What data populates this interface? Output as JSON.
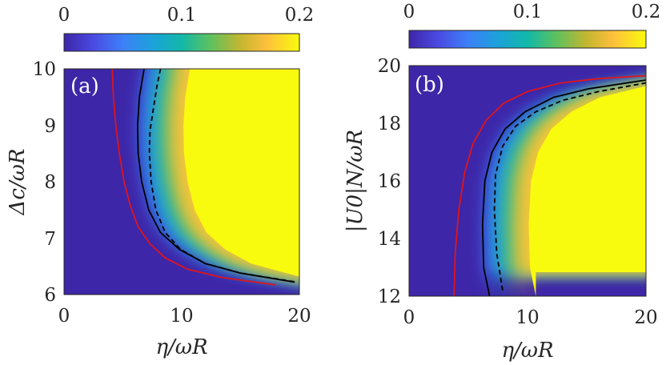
{
  "figure": {
    "colormap": "parula",
    "colors": {
      "background_low": "#3d26a8",
      "high": "#f9fb0e",
      "boundary_red": "#e0151b",
      "boundary_black": "#000000"
    }
  },
  "chart_data": [
    {
      "type": "heatmap",
      "panel_label": "(a)",
      "xlabel": "η/ωR",
      "ylabel": "Δc/ωR",
      "xlim": [
        0,
        20
      ],
      "ylim": [
        6,
        10
      ],
      "x_ticks": [
        "0",
        "10",
        "20"
      ],
      "y_ticks": [
        "6",
        "7",
        "8",
        "9",
        "10"
      ],
      "colorbar": {
        "range": [
          0,
          0.2
        ],
        "ticks": [
          "0",
          "0.1",
          "0.2"
        ]
      },
      "note": "Region right of the boundary saturates at 0.2 (yellow); left is 0 (dark blue).",
      "curves": [
        {
          "name": "red boundary",
          "style": "solid",
          "color": "#e0151b",
          "x": [
            4.1,
            4.2,
            4.4,
            4.7,
            5.1,
            5.6,
            6.3,
            7.3,
            8.6,
            10.5,
            13.5,
            18.0
          ],
          "y": [
            10.0,
            9.5,
            9.0,
            8.5,
            8.0,
            7.6,
            7.2,
            6.9,
            6.65,
            6.45,
            6.3,
            6.17
          ]
        },
        {
          "name": "black solid boundary",
          "style": "solid",
          "color": "#000000",
          "x": [
            6.8,
            6.4,
            6.25,
            6.3,
            6.6,
            7.2,
            8.2,
            9.8,
            12.0,
            15.0,
            19.6
          ],
          "y": [
            10.0,
            9.5,
            9.0,
            8.5,
            8.0,
            7.5,
            7.1,
            6.8,
            6.55,
            6.38,
            6.22
          ]
        },
        {
          "name": "black dashed boundary",
          "style": "dashed",
          "color": "#000000",
          "x": [
            8.2,
            7.9,
            7.6,
            7.3,
            7.25,
            7.4,
            7.8,
            8.6,
            9.9,
            12.0,
            15.0,
            19.8
          ],
          "y": [
            10.0,
            9.7,
            9.3,
            8.9,
            8.5,
            8.0,
            7.5,
            7.1,
            6.8,
            6.55,
            6.38,
            6.22
          ]
        }
      ]
    },
    {
      "type": "heatmap",
      "panel_label": "(b)",
      "xlabel": "η/ωR",
      "ylabel": "|U0|N/ωR",
      "xlim": [
        0,
        20
      ],
      "ylim": [
        12,
        20
      ],
      "x_ticks": [
        "0",
        "10",
        "20"
      ],
      "y_ticks": [
        "12",
        "14",
        "16",
        "18",
        "20"
      ],
      "colorbar": {
        "range": [
          0,
          0.2
        ],
        "ticks": [
          "0",
          "0.1",
          "0.2"
        ]
      },
      "note": "Region right of the boundary saturates at 0.2 (yellow); left is 0 (dark blue).",
      "curves": [
        {
          "name": "red boundary",
          "style": "solid",
          "color": "#e0151b",
          "x": [
            3.8,
            3.9,
            4.2,
            4.7,
            5.4,
            6.5,
            8.0,
            10.0,
            12.8,
            16.0,
            20.0
          ],
          "y": [
            12.0,
            13.5,
            15.0,
            16.3,
            17.3,
            18.1,
            18.7,
            19.1,
            19.4,
            19.55,
            19.65
          ]
        },
        {
          "name": "black solid boundary",
          "style": "solid",
          "color": "#000000",
          "x": [
            6.8,
            6.3,
            6.2,
            6.4,
            7.0,
            8.1,
            9.8,
            12.2,
            15.2,
            20.0
          ],
          "y": [
            12.0,
            13.0,
            14.5,
            16.0,
            17.0,
            17.8,
            18.4,
            18.9,
            19.2,
            19.5
          ]
        },
        {
          "name": "black dashed boundary",
          "style": "dashed",
          "color": "#000000",
          "x": [
            7.9,
            7.4,
            7.2,
            7.3,
            7.9,
            9.0,
            10.7,
            13.0,
            16.0,
            20.0
          ],
          "y": [
            12.2,
            13.5,
            15.0,
            16.2,
            17.2,
            17.9,
            18.4,
            18.8,
            19.1,
            19.4
          ]
        }
      ]
    }
  ]
}
